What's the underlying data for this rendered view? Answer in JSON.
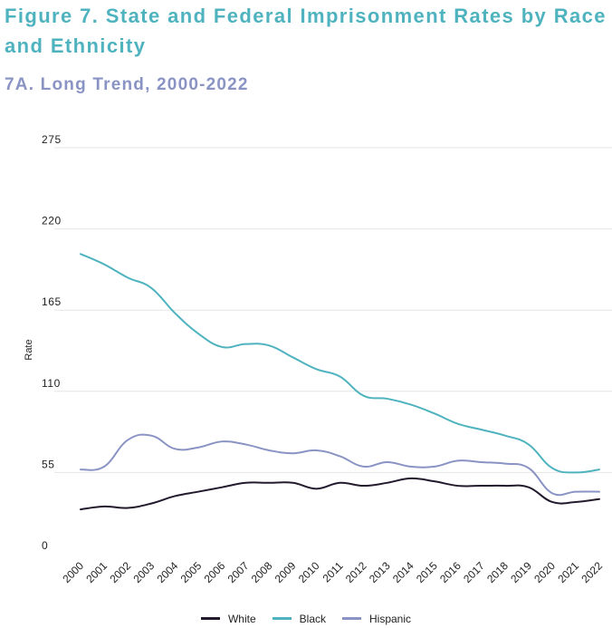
{
  "chart_data": {
    "type": "line",
    "title": "Figure 7. State and Federal Imprisonment Rates by Race and Ethnicity",
    "subtitle": "7A. Long Trend, 2000-2022",
    "xlabel": "",
    "ylabel": "Rate",
    "ylim": [
      0,
      275
    ],
    "yticks": [
      0,
      55,
      110,
      165,
      220,
      275
    ],
    "grid": true,
    "legend_position": "bottom",
    "x": [
      "2000",
      "2001",
      "2002",
      "2003",
      "2004",
      "2005",
      "2006",
      "2007",
      "2008",
      "2009",
      "2010",
      "2011",
      "2012",
      "2013",
      "2014",
      "2015",
      "2016",
      "2017",
      "2018",
      "2019",
      "2020",
      "2021",
      "2022"
    ],
    "series": [
      {
        "name": "White",
        "color": "#231a2e",
        "values": [
          30,
          32,
          31,
          34,
          39,
          42,
          45,
          48,
          48,
          48,
          44,
          48,
          46,
          48,
          51,
          49,
          46,
          46,
          46,
          45,
          35,
          35,
          37
        ]
      },
      {
        "name": "Black",
        "color": "#4fb3bf",
        "values": [
          203,
          196,
          187,
          180,
          163,
          149,
          140,
          142,
          141,
          133,
          125,
          120,
          107,
          105,
          101,
          95,
          88,
          84,
          80,
          74,
          58,
          55,
          57
        ]
      },
      {
        "name": "Hispanic",
        "color": "#8a94c4",
        "values": [
          57,
          59,
          77,
          80,
          71,
          72,
          76,
          74,
          70,
          68,
          70,
          66,
          59,
          62,
          59,
          59,
          63,
          62,
          61,
          58,
          41,
          42,
          42
        ]
      }
    ]
  }
}
